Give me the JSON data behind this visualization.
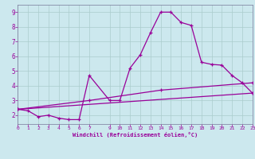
{
  "background_color": "#cce8ee",
  "grid_color": "#aacccc",
  "line_color": "#990099",
  "xlim": [
    0,
    23
  ],
  "ylim": [
    1.4,
    9.5
  ],
  "xticks": [
    0,
    1,
    2,
    3,
    4,
    5,
    6,
    7,
    9,
    10,
    11,
    12,
    13,
    14,
    15,
    16,
    17,
    18,
    19,
    20,
    21,
    22,
    23
  ],
  "yticks": [
    2,
    3,
    4,
    5,
    6,
    7,
    8,
    9
  ],
  "xlabel": "Windchill (Refroidissement éolien,°C)",
  "series1": [
    [
      0,
      2.4
    ],
    [
      1,
      2.3
    ],
    [
      2,
      1.9
    ],
    [
      3,
      2.0
    ],
    [
      4,
      1.8
    ],
    [
      5,
      1.7
    ],
    [
      6,
      1.7
    ],
    [
      7,
      4.7
    ],
    [
      9,
      3.0
    ],
    [
      10,
      3.0
    ],
    [
      11,
      5.2
    ],
    [
      12,
      6.1
    ],
    [
      13,
      7.6
    ],
    [
      14,
      9.0
    ],
    [
      15,
      9.0
    ],
    [
      16,
      8.3
    ],
    [
      17,
      8.1
    ],
    [
      18,
      5.6
    ],
    [
      19,
      5.45
    ],
    [
      20,
      5.4
    ],
    [
      21,
      4.7
    ],
    [
      22,
      4.2
    ],
    [
      23,
      3.5
    ]
  ],
  "series2": [
    [
      0,
      2.4
    ],
    [
      23,
      3.5
    ]
  ],
  "series3": [
    [
      0,
      2.4
    ],
    [
      7,
      3.0
    ],
    [
      14,
      3.7
    ],
    [
      23,
      4.2
    ]
  ]
}
